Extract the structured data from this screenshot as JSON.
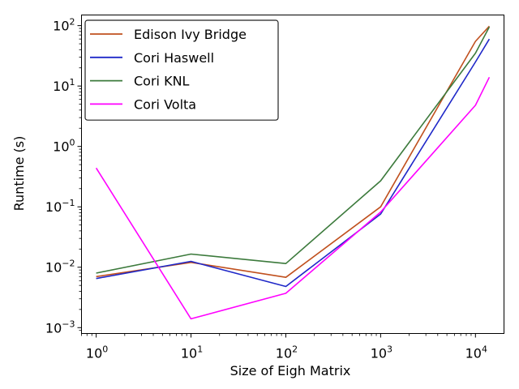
{
  "chart_data": {
    "type": "line",
    "title": "",
    "xlabel": "Size of Eigh Matrix",
    "ylabel": "Runtime (s)",
    "xscale": "log",
    "yscale": "log",
    "xlim": [
      0.7,
      20000
    ],
    "ylim": [
      0.0008,
      150
    ],
    "xticks": [
      {
        "value": 1,
        "base": "10",
        "exp": "0"
      },
      {
        "value": 10,
        "base": "10",
        "exp": "1"
      },
      {
        "value": 100,
        "base": "10",
        "exp": "2"
      },
      {
        "value": 1000,
        "base": "10",
        "exp": "3"
      },
      {
        "value": 10000,
        "base": "10",
        "exp": "4"
      }
    ],
    "yticks": [
      {
        "value": 0.001,
        "base": "10",
        "exp": "−3"
      },
      {
        "value": 0.01,
        "base": "10",
        "exp": "−2"
      },
      {
        "value": 0.1,
        "base": "10",
        "exp": "−1"
      },
      {
        "value": 1,
        "base": "10",
        "exp": "0"
      },
      {
        "value": 10,
        "base": "10",
        "exp": "1"
      },
      {
        "value": 100,
        "base": "10",
        "exp": "2"
      }
    ],
    "grid": false,
    "legend_position": "upper-left",
    "series": [
      {
        "name": "Edison Ivy Bridge",
        "color": "#c0501e",
        "x": [
          1,
          10,
          100,
          1000,
          10000,
          14000
        ],
        "y": [
          0.007,
          0.012,
          0.0068,
          0.1,
          55,
          98
        ]
      },
      {
        "name": "Cori Haswell",
        "color": "#1f28c8",
        "x": [
          1,
          10,
          100,
          1000,
          10000,
          14000
        ],
        "y": [
          0.0065,
          0.0125,
          0.0048,
          0.076,
          25,
          60
        ]
      },
      {
        "name": "Cori KNL",
        "color": "#3c7a3c",
        "x": [
          1,
          10,
          100,
          1000,
          10000,
          14000
        ],
        "y": [
          0.008,
          0.0165,
          0.0115,
          0.27,
          35,
          95
        ]
      },
      {
        "name": "Cori Volta",
        "color": "#ff00ff",
        "x": [
          1,
          10,
          100,
          1000,
          10000,
          14000
        ],
        "y": [
          0.44,
          0.0014,
          0.0037,
          0.082,
          4.8,
          14
        ]
      }
    ]
  }
}
